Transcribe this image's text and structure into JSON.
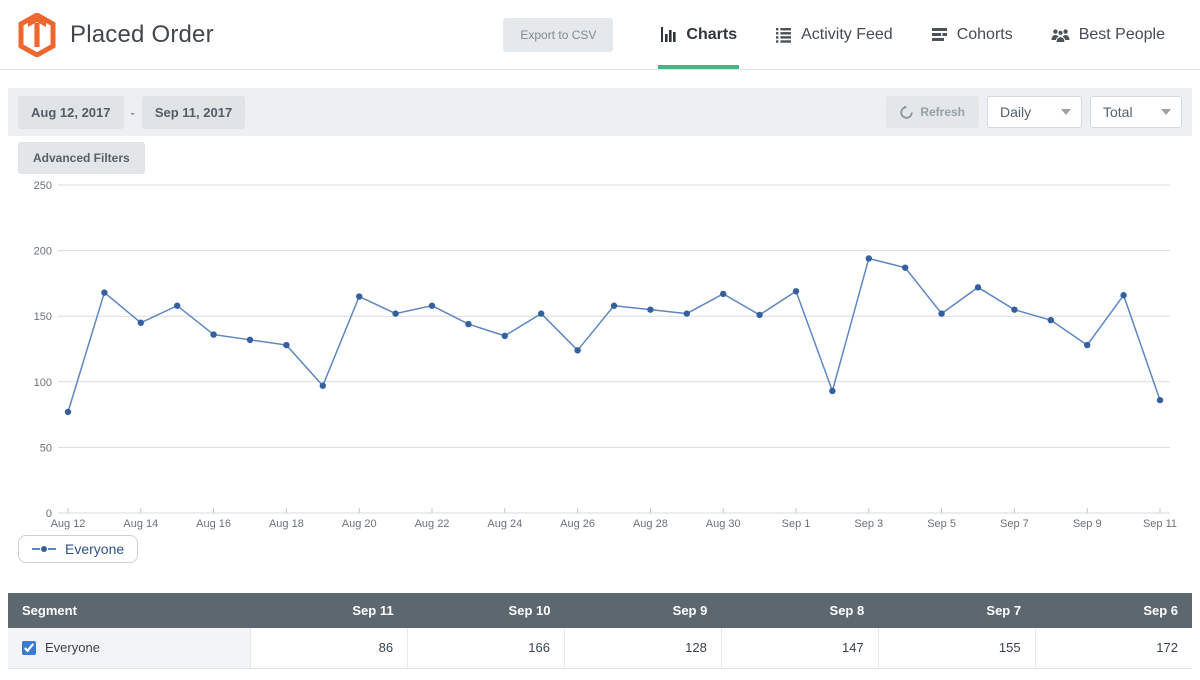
{
  "header": {
    "title": "Placed Order",
    "export_label": "Export to CSV",
    "tabs": [
      {
        "label": "Charts",
        "icon": "bar-chart-icon",
        "active": true
      },
      {
        "label": "Activity Feed",
        "icon": "list-icon",
        "active": false
      },
      {
        "label": "Cohorts",
        "icon": "rows-icon",
        "active": false
      },
      {
        "label": "Best People",
        "icon": "people-icon",
        "active": false
      }
    ],
    "active_tab_color": "#44b787",
    "logo_color": "#ee672f"
  },
  "filter_bar": {
    "date_start": "Aug 12, 2017",
    "date_separator": "-",
    "date_end": "Sep 11, 2017",
    "refresh_label": "Refresh",
    "interval_value": "Daily",
    "metric_value": "Total",
    "advanced_filters_label": "Advanced Filters"
  },
  "chart_data": {
    "type": "line",
    "title": "",
    "xlabel": "",
    "ylabel": "",
    "x": [
      "Aug 12",
      "Aug 13",
      "Aug 14",
      "Aug 15",
      "Aug 16",
      "Aug 17",
      "Aug 18",
      "Aug 19",
      "Aug 20",
      "Aug 21",
      "Aug 22",
      "Aug 23",
      "Aug 24",
      "Aug 25",
      "Aug 26",
      "Aug 27",
      "Aug 28",
      "Aug 29",
      "Aug 30",
      "Aug 31",
      "Sep 1",
      "Sep 2",
      "Sep 3",
      "Sep 4",
      "Sep 5",
      "Sep 6",
      "Sep 7",
      "Sep 8",
      "Sep 9",
      "Sep 10",
      "Sep 11"
    ],
    "series": [
      {
        "name": "Everyone",
        "values": [
          77,
          168,
          145,
          158,
          136,
          132,
          128,
          97,
          165,
          152,
          158,
          144,
          135,
          152,
          124,
          158,
          155,
          152,
          167,
          151,
          169,
          93,
          194,
          187,
          152,
          172,
          155,
          147,
          128,
          166,
          86
        ]
      }
    ],
    "ylim": [
      0,
      250
    ],
    "ytick_step": 50,
    "xtick_every": 2,
    "grid": true,
    "legend_position": "bottom-left",
    "line_color": "#5e86c0",
    "marker_color": "#35609f",
    "grid_color": "#d8dbde",
    "axis_text_color": "#6a737a"
  },
  "legend": {
    "label": "Everyone"
  },
  "table": {
    "segment_header": "Segment",
    "columns": [
      "Sep 11",
      "Sep 10",
      "Sep 9",
      "Sep 8",
      "Sep 7",
      "Sep 6"
    ],
    "rows": [
      {
        "segment": "Everyone",
        "checked": true,
        "values": [
          86,
          166,
          128,
          147,
          155,
          172
        ]
      }
    ],
    "header_bg": "#5c6770",
    "checkbox_color": "#3a7bd5"
  }
}
